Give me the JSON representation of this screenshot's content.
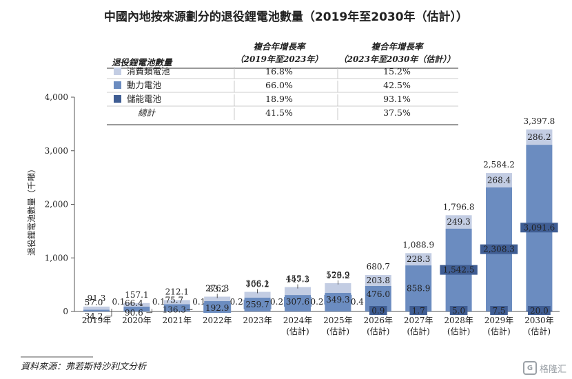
{
  "chart_data": {
    "type": "bar",
    "title": "中國內地按來源劃分的退役鋰電池數量（2019年至2030年（估計））",
    "ylabel": "退役鋰電池數量（千噸）",
    "ylim": [
      0,
      4000
    ],
    "yticks": [
      "0",
      "1,000",
      "2,000",
      "3,000",
      "4,000"
    ],
    "grid": false,
    "stacked": true,
    "categories": [
      "2019年",
      "2020年",
      "2021年",
      "2022年",
      "2023年",
      "2024年",
      "2025年",
      "2026年",
      "2027年",
      "2028年",
      "2029年",
      "2030年"
    ],
    "estimate_note": "(估計)",
    "estimate_from_index": 5,
    "series": [
      {
        "name": "儲能電池",
        "color": "#3f5d93",
        "values": [
          0.1,
          0.1,
          0.1,
          0.2,
          0.2,
          0.2,
          0.4,
          0.9,
          1.7,
          5.0,
          7.5,
          20.0
        ],
        "labels": [
          "0.1",
          "0.1",
          "0.1",
          "0.2",
          "0.2",
          "0.2",
          "0.4",
          "0.9",
          "1.7",
          "5.0",
          "7.5",
          "20.0"
        ]
      },
      {
        "name": "動力電池",
        "color": "#6b8cc0",
        "values": [
          34.2,
          90.6,
          136.3,
          192.9,
          259.7,
          307.6,
          349.3,
          476.0,
          858.9,
          1542.5,
          2308.3,
          3091.6
        ],
        "labels": [
          "34.2",
          "90.6",
          "136.3",
          "192.9",
          "259.7",
          "307.6",
          "349.3",
          "476.0",
          "858.9",
          "1,542.5",
          "2,308.3",
          "3,091.6"
        ]
      },
      {
        "name": "消費類電池",
        "color": "#c3cde3",
        "values": [
          57.0,
          66.4,
          75.7,
          83.2,
          106.2,
          147.3,
          179.2,
          203.8,
          228.3,
          249.3,
          268.4,
          286.2
        ],
        "labels": [
          "57.0",
          "66.4",
          "75.7",
          "83.2",
          "106.2",
          "147.3",
          "179.2",
          "203.8",
          "228.3",
          "249.3",
          "268.4",
          "286.2"
        ]
      }
    ],
    "totals": [
      91.3,
      157.1,
      212.1,
      276.3,
      366.1,
      455.1,
      528.9,
      680.7,
      1088.9,
      1796.8,
      2584.2,
      3397.8
    ],
    "total_labels": [
      "91.3",
      "157.1",
      "212.1",
      "276.3",
      "366.1",
      "455.1",
      "528.9",
      "680.7",
      "1,088.9",
      "1,796.8",
      "2,584.2",
      "3,397.8"
    ]
  },
  "table": {
    "header_label": "退役鋰電池數量",
    "col1_title": "複合年增長率",
    "col1_sub": "（2019年至2023年）",
    "col2_title": "複合年增長率",
    "col2_sub": "（2023年至2030年（估計））",
    "rows": [
      {
        "label": "消費類電池",
        "color": "#c3cde3",
        "c1": "16.8%",
        "c2": "15.2%"
      },
      {
        "label": "動力電池",
        "color": "#6b8cc0",
        "c1": "66.0%",
        "c2": "42.5%"
      },
      {
        "label": "儲能電池",
        "color": "#3f5d93",
        "c1": "18.9%",
        "c2": "93.1%"
      },
      {
        "label": "總計",
        "color": "",
        "c1": "41.5%",
        "c2": "37.5%"
      }
    ]
  },
  "source": "資料來源：弗若斯特沙利文分析",
  "watermark": "格隆汇"
}
